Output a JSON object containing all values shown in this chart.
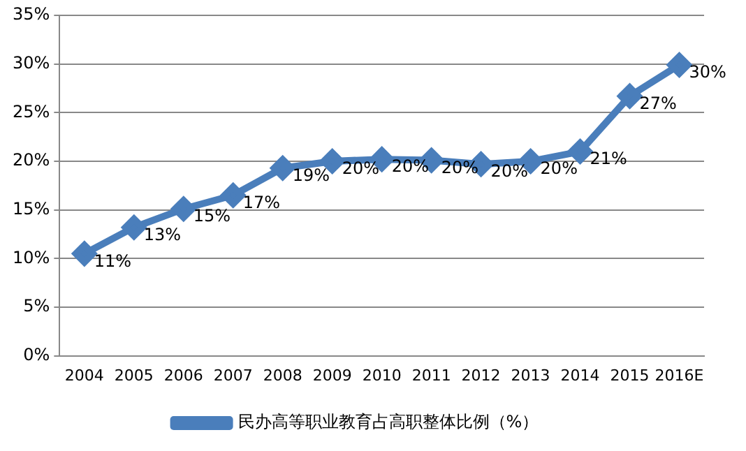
{
  "chart_data": {
    "type": "line",
    "categories": [
      "2004",
      "2005",
      "2006",
      "2007",
      "2008",
      "2009",
      "2010",
      "2011",
      "2012",
      "2013",
      "2014",
      "2015",
      "2016E"
    ],
    "series": [
      {
        "name": "民办高等职业教育占高职整体比例（%）",
        "color": "#4a7ebb",
        "values": [
          10.5,
          13.2,
          15.1,
          16.5,
          19.3,
          20.0,
          20.2,
          20.1,
          19.7,
          20.0,
          21.0,
          26.7,
          29.9
        ],
        "value_labels": [
          "11%",
          "13%",
          "15%",
          "17%",
          "19%",
          "20%",
          "20%",
          "20%",
          "20%",
          "20%",
          "21%",
          "27%",
          "30%"
        ]
      }
    ],
    "ylim": [
      0,
      35
    ],
    "yticks": [
      {
        "value": 0,
        "label": "0%"
      },
      {
        "value": 5,
        "label": "5%"
      },
      {
        "value": 10,
        "label": "10%"
      },
      {
        "value": 15,
        "label": "15%"
      },
      {
        "value": 20,
        "label": "20%"
      },
      {
        "value": 25,
        "label": "25%"
      },
      {
        "value": 30,
        "label": "30%"
      },
      {
        "value": 35,
        "label": "35%"
      }
    ],
    "grid": "y",
    "legend": "bottom",
    "marker": "diamond",
    "line_style": "solid"
  }
}
